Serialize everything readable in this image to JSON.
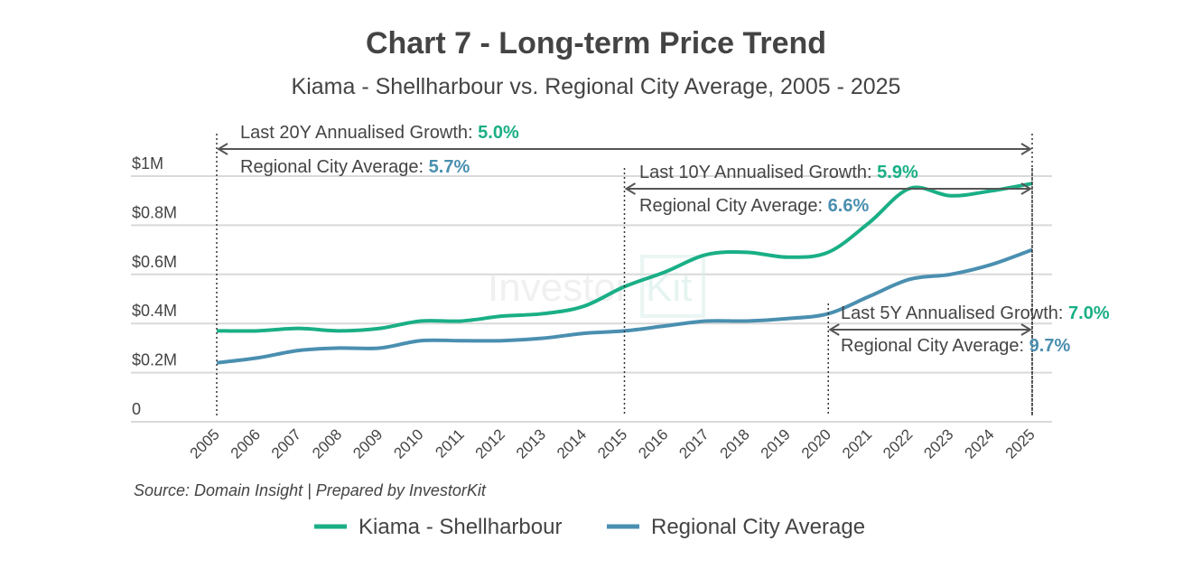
{
  "chart_data": {
    "type": "line",
    "title": "Chart 7 - Long-term Price Trend",
    "subtitle": "Kiama - Shellharbour vs. Regional City Average, 2005 - 2025",
    "x": [
      "2005",
      "2006",
      "2007",
      "2008",
      "2009",
      "2010",
      "2011",
      "2012",
      "2013",
      "2014",
      "2015",
      "2016",
      "2017",
      "2018",
      "2019",
      "2020",
      "2021",
      "2022",
      "2023",
      "2024",
      "2025"
    ],
    "series": [
      {
        "name": "Kiama - Shellharbour",
        "color": "#1aaf86",
        "values": [
          0.37,
          0.37,
          0.38,
          0.37,
          0.38,
          0.41,
          0.41,
          0.43,
          0.44,
          0.47,
          0.55,
          0.61,
          0.68,
          0.69,
          0.67,
          0.69,
          0.81,
          0.95,
          0.92,
          0.94,
          0.97
        ]
      },
      {
        "name": "Regional City Average",
        "color": "#4a8fb0",
        "values": [
          0.24,
          0.26,
          0.29,
          0.3,
          0.3,
          0.33,
          0.33,
          0.33,
          0.34,
          0.36,
          0.37,
          0.39,
          0.41,
          0.41,
          0.42,
          0.44,
          0.51,
          0.58,
          0.6,
          0.64,
          0.7
        ]
      }
    ],
    "unit": "$M",
    "ylim": [
      0,
      1
    ],
    "yticks": [
      {
        "value": 0,
        "label": "0"
      },
      {
        "value": 0.2,
        "label": "$0.2M"
      },
      {
        "value": 0.4,
        "label": "$0.4M"
      },
      {
        "value": 0.6,
        "label": "$0.6M"
      },
      {
        "value": 0.8,
        "label": "$0.8M"
      },
      {
        "value": 1,
        "label": "$1M"
      }
    ],
    "grid": true,
    "legend": "bottom",
    "annotations": [
      {
        "from": "2005",
        "to": "2025",
        "label": "Last 20Y Annualised Growth: ",
        "value": "5.0%",
        "avg_label": "Regional City Average: ",
        "avg_value": "5.7%"
      },
      {
        "from": "2015",
        "to": "2025",
        "label": "Last 10Y Annualised Growth: ",
        "value": "5.9%",
        "avg_label": "Regional City Average: ",
        "avg_value": "6.6%"
      },
      {
        "from": "2020",
        "to": "2025",
        "label": "Last 5Y Annualised Growth: ",
        "value": "7.0%",
        "avg_label": "Regional City Average: ",
        "avg_value": "9.7%"
      }
    ],
    "source": "Source: Domain Insight | Prepared by InvestorKit",
    "watermark": "InvestorKit"
  }
}
